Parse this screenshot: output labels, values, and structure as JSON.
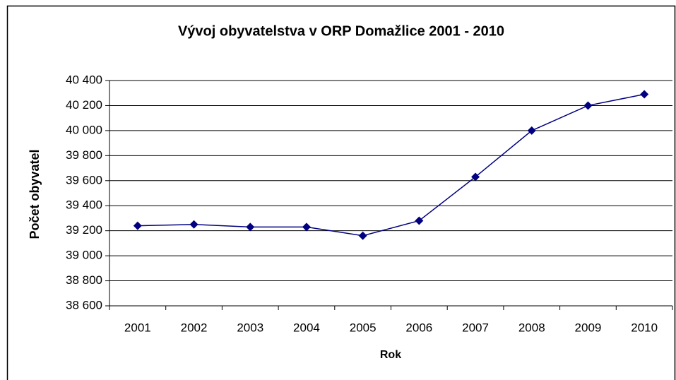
{
  "chart_data": {
    "type": "line",
    "title": "Vývoj obyvatelstva v ORP Domažlice 2001 - 2010",
    "x_label": "Rok",
    "y_label": "Počet obyvatel",
    "categories": [
      "2001",
      "2002",
      "2003",
      "2004",
      "2005",
      "2006",
      "2007",
      "2008",
      "2009",
      "2010"
    ],
    "series": [
      {
        "name": "Počet obyvatel",
        "color": "#000080",
        "values": [
          39240,
          39250,
          39230,
          39230,
          39160,
          39280,
          39630,
          40000,
          40200,
          40290
        ]
      }
    ],
    "ylim": [
      38600,
      40400
    ],
    "yticks": [
      {
        "value": 38600,
        "label": "38 600"
      },
      {
        "value": 38800,
        "label": "38 800"
      },
      {
        "value": 39000,
        "label": "39 000"
      },
      {
        "value": 39200,
        "label": "39 200"
      },
      {
        "value": 39400,
        "label": "39 400"
      },
      {
        "value": 39600,
        "label": "39 600"
      },
      {
        "value": 39800,
        "label": "39 800"
      },
      {
        "value": 40000,
        "label": "40 000"
      },
      {
        "value": 40200,
        "label": "40 200"
      },
      {
        "value": 40400,
        "label": "40 400"
      }
    ],
    "grid": true
  }
}
